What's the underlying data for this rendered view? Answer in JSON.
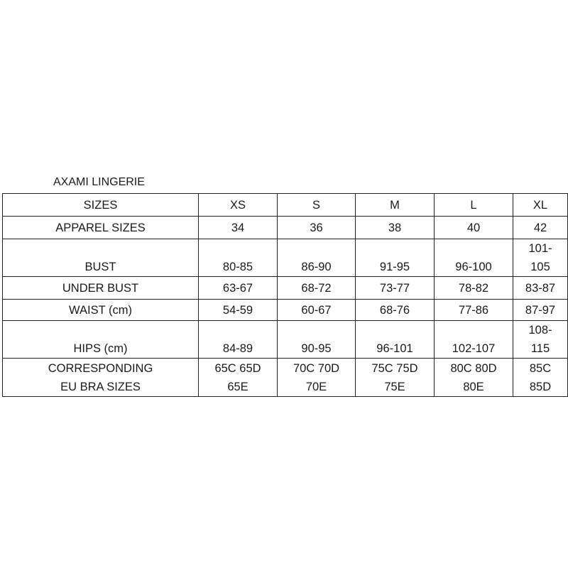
{
  "title": "AXAMI LINGERIE",
  "table": {
    "header": [
      "SIZES",
      "XS",
      "S",
      "M",
      "L",
      "XL"
    ],
    "rows": [
      [
        "APPAREL SIZES",
        "34",
        "36",
        "38",
        "40",
        "42"
      ],
      [
        "BUST",
        "80-85",
        "86-90",
        "91-95",
        "96-100",
        "101-\n105"
      ],
      [
        "UNDER BUST",
        "63-67",
        "68-72",
        "73-77",
        "78-82",
        "83-87"
      ],
      [
        "WAIST (cm)",
        "54-59",
        "60-67",
        "68-76",
        "77-86",
        "87-97"
      ],
      [
        "HIPS (cm)",
        "84-89",
        "90-95",
        "96-101",
        "102-107",
        "108-\n115"
      ],
      [
        "CORRESPONDING\nEU  BRA  SIZES",
        "65C 65D\n65E",
        "70C 70D\n70E",
        "75C 75D\n75E",
        "80C 80D\n80E",
        "85C\n85D"
      ]
    ]
  }
}
